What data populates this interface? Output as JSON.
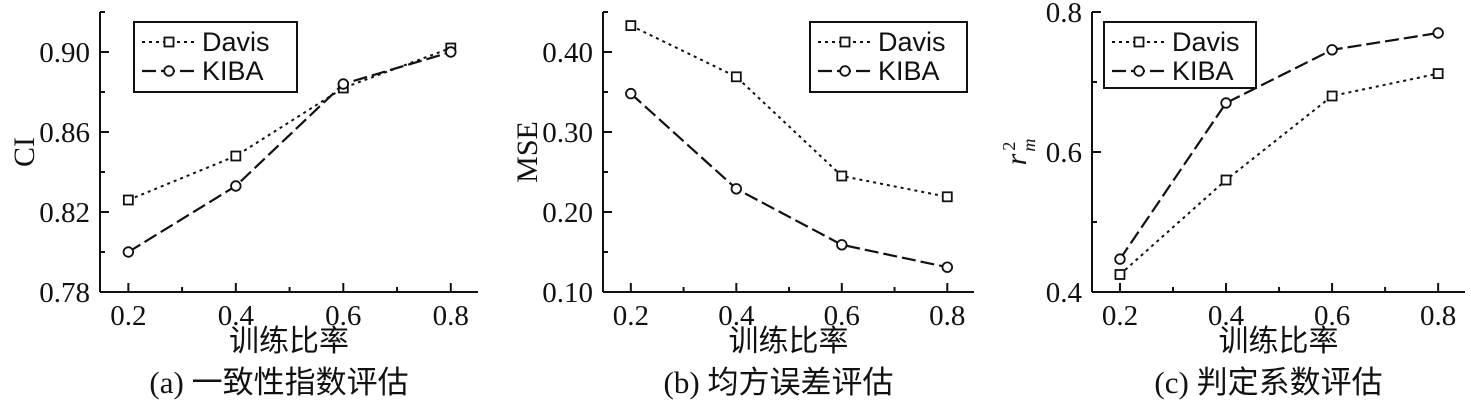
{
  "chart_data": [
    {
      "type": "line",
      "caption": "(a) 一致性指数评估",
      "xlabel": "训练比率",
      "ylabel": "CI",
      "x": [
        0.2,
        0.4,
        0.6,
        0.8
      ],
      "x_ticks": [
        "0.2",
        "0.4",
        "0.6",
        "0.8"
      ],
      "ylim": [
        0.78,
        0.92
      ],
      "y_ticks": [
        "0.78",
        "0.82",
        "0.86",
        "0.90"
      ],
      "legend_position": "top-left",
      "series": [
        {
          "name": "Davis",
          "marker": "square",
          "values": [
            0.826,
            0.848,
            0.882,
            0.902
          ]
        },
        {
          "name": "KIBA",
          "marker": "circle",
          "values": [
            0.8,
            0.833,
            0.884,
            0.9
          ]
        }
      ]
    },
    {
      "type": "line",
      "caption": "(b) 均方误差评估",
      "xlabel": "训练比率",
      "ylabel": "MSE",
      "x": [
        0.2,
        0.4,
        0.6,
        0.8
      ],
      "x_ticks": [
        "0.2",
        "0.4",
        "0.6",
        "0.8"
      ],
      "ylim": [
        0.1,
        0.45
      ],
      "y_ticks": [
        "0.10",
        "0.20",
        "0.30",
        "0.40"
      ],
      "legend_position": "top-right",
      "series": [
        {
          "name": "Davis",
          "marker": "square",
          "values": [
            0.433,
            0.369,
            0.245,
            0.219
          ]
        },
        {
          "name": "KIBA",
          "marker": "circle",
          "values": [
            0.348,
            0.229,
            0.159,
            0.131
          ]
        }
      ]
    },
    {
      "type": "line",
      "caption": "(c) 判定系数评估",
      "xlabel": "训练比率",
      "ylabel": "r",
      "ylabel_sub": "m",
      "ylabel_sup": "2",
      "x": [
        0.2,
        0.4,
        0.6,
        0.8
      ],
      "x_ticks": [
        "0.2",
        "0.4",
        "0.6",
        "0.8"
      ],
      "ylim": [
        0.4,
        0.8
      ],
      "y_ticks": [
        "0.4",
        "0.6",
        "0.8"
      ],
      "legend_position": "top-left",
      "series": [
        {
          "name": "Davis",
          "marker": "square",
          "values": [
            0.425,
            0.56,
            0.68,
            0.712
          ]
        },
        {
          "name": "KIBA",
          "marker": "circle",
          "values": [
            0.447,
            0.67,
            0.746,
            0.77
          ]
        }
      ]
    }
  ]
}
